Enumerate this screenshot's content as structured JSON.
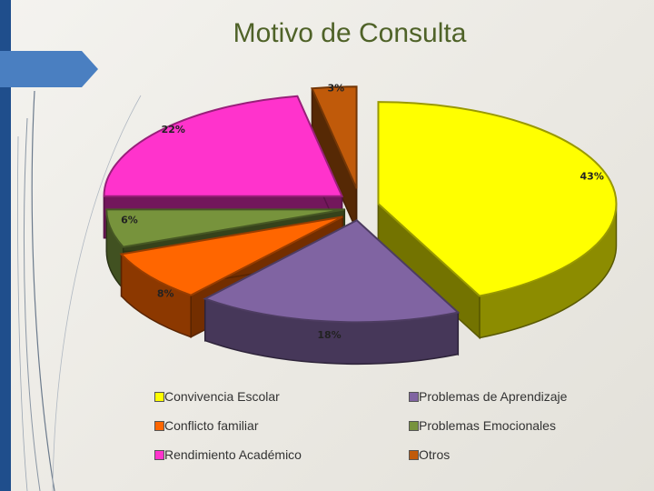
{
  "chart_data": {
    "type": "pie",
    "title": "Motivo de Consulta",
    "legend_placement": "bottom",
    "slices": [
      {
        "name": "Convivencia Escolar",
        "value": 43,
        "label": "43%",
        "color": "#ffff00"
      },
      {
        "name": "Problemas de Aprendizaje",
        "value": 18,
        "label": "18%",
        "color": "#8064a2"
      },
      {
        "name": "Conflicto familiar",
        "value": 8,
        "label": "8%",
        "color": "#ff6600"
      },
      {
        "name": "Problemas Emocionales",
        "value": 6,
        "label": "6%",
        "color": "#77933c"
      },
      {
        "name": "Rendimiento Académico",
        "value": 22,
        "label": "22%",
        "color": "#ff33cc"
      },
      {
        "name": "Otros",
        "value": 3,
        "label": "3%",
        "color": "#c05a0a"
      }
    ],
    "legend": [
      "Convivencia Escolar",
      "Problemas de Aprendizaje",
      "Conflicto familiar",
      "Problemas Emocionales",
      "Rendimiento Académico",
      "Otros"
    ]
  }
}
